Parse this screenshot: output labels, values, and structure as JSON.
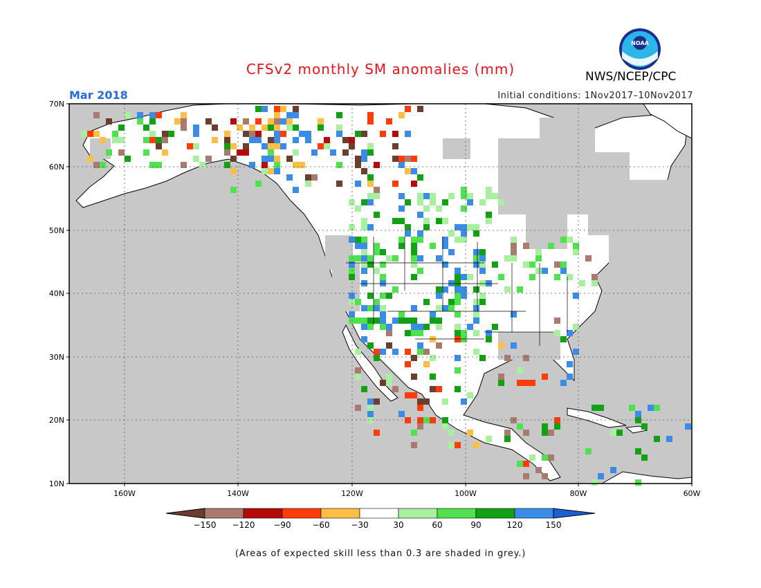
{
  "header": {
    "title": "CFSv2 monthly SM anomalies (mm)",
    "agency": "NWS/NCEP/CPC",
    "period": "Mar 2018",
    "initial_conditions": "Initial conditions: 1Nov2017–10Nov2017",
    "logo_text": "NOAA"
  },
  "colors": {
    "title": "#e8141b",
    "period": "#2a6ad6",
    "ocean": "#c8c8c8",
    "skill_grey": "#c8c8c8",
    "land": "#ffffff"
  },
  "map": {
    "lat_labels": [
      "70N",
      "60N",
      "50N",
      "40N",
      "30N",
      "20N",
      "10N"
    ],
    "lon_labels": [
      "160W",
      "140W",
      "120W",
      "100W",
      "80W",
      "60W"
    ],
    "lat_range": [
      10,
      70
    ],
    "lon_range": [
      -172,
      -60
    ]
  },
  "colorbar": {
    "ticks": [
      "−150",
      "−120",
      "−90",
      "−60",
      "−30",
      "30",
      "60",
      "90",
      "120",
      "150"
    ],
    "colors": [
      "#6b3e2e",
      "#a97a70",
      "#b40a0a",
      "#ff3c0a",
      "#ffbe46",
      "#ffffff",
      "#a8f0a0",
      "#50e050",
      "#14a014",
      "#3a8ce6",
      "#1c5fd2"
    ]
  },
  "footer": {
    "note": "(Areas of expected skill less than 0.3 are shaded in grey.)"
  }
}
